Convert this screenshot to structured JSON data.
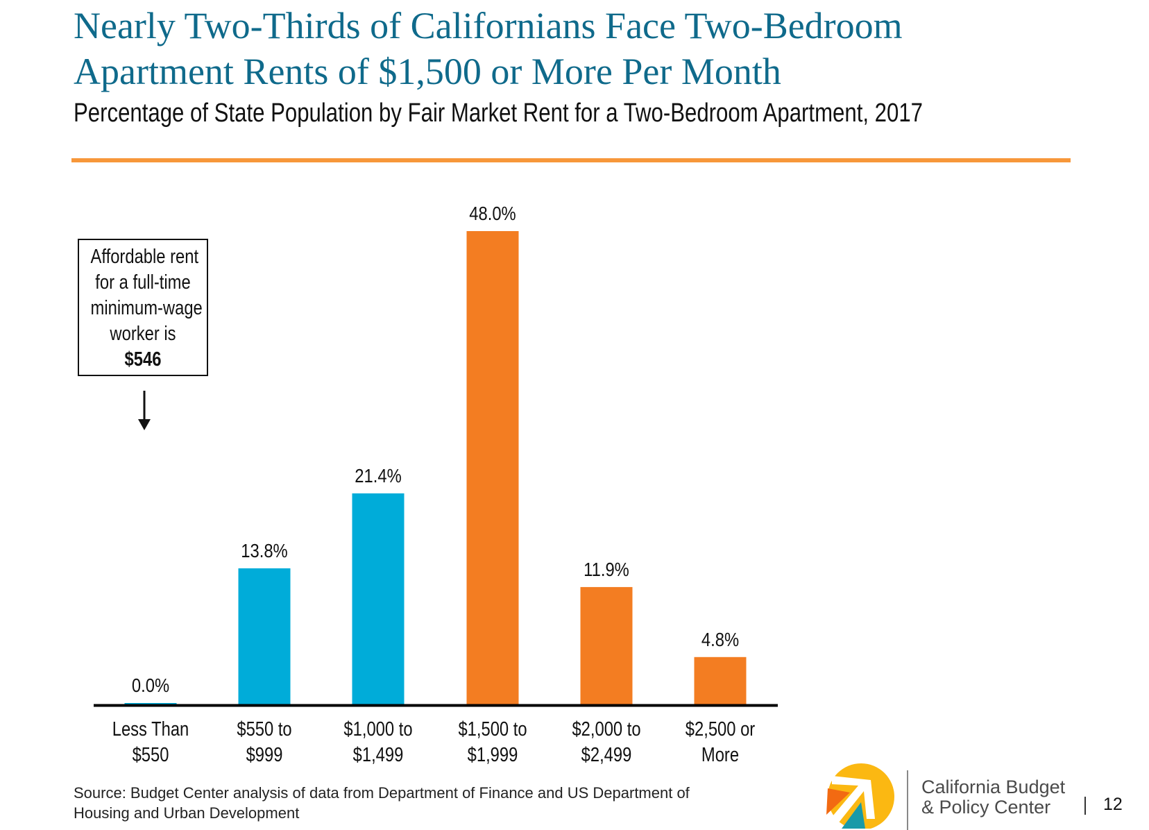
{
  "header": {
    "title_line1": "Nearly Two-Thirds of Californians Face Two-Bedroom",
    "title_line2": "Apartment Rents of $1,500 or More Per Month",
    "subtitle": "Percentage of State Population by Fair Market Rent for a Two-Bedroom Apartment, 2017"
  },
  "callout": {
    "lines": [
      "Affordable rent",
      "for a full-time",
      "minimum-wage",
      "worker is"
    ],
    "amount": "$546",
    "arrow_icon": "down-arrow-icon"
  },
  "chart_data": {
    "type": "bar",
    "title": "Percentage of State Population by Fair Market Rent for a Two-Bedroom Apartment, 2017",
    "xlabel": "",
    "ylabel": "",
    "ylim": [
      0,
      48
    ],
    "grid": false,
    "categories": [
      [
        "Less Than",
        "$550"
      ],
      [
        "$550 to",
        "$999"
      ],
      [
        "$1,000 to",
        "$1,499"
      ],
      [
        "$1,500 to",
        "$1,999"
      ],
      [
        "$2,000 to",
        "$2,499"
      ],
      [
        "$2,500 or",
        "More"
      ]
    ],
    "values": [
      0.0,
      13.8,
      21.4,
      48.0,
      11.9,
      4.8
    ],
    "data_labels": [
      "0.0%",
      "13.8%",
      "21.4%",
      "48.0%",
      "11.9%",
      "4.8%"
    ],
    "colors": [
      "#00acd9",
      "#00acd9",
      "#00acd9",
      "#f37d22",
      "#f37d22",
      "#f37d22"
    ],
    "annotation": "Affordable rent for a full-time minimum-wage worker is $546"
  },
  "footer": {
    "source_line1": "Source: Budget Center analysis of data from Department of Finance and US Department of",
    "source_line2": "Housing and Urban Development",
    "org_line1": "California Budget",
    "org_line2": "& Policy Center",
    "page_number": "12"
  },
  "colors": {
    "title": "#0f6a8b",
    "rule": "#f7973a",
    "affordable_bar": "#00acd9",
    "unaffordable_bar": "#f37d22",
    "logo_yellow": "#fbb812",
    "logo_orange": "#f26a12",
    "logo_teal": "#1a9aa8"
  }
}
